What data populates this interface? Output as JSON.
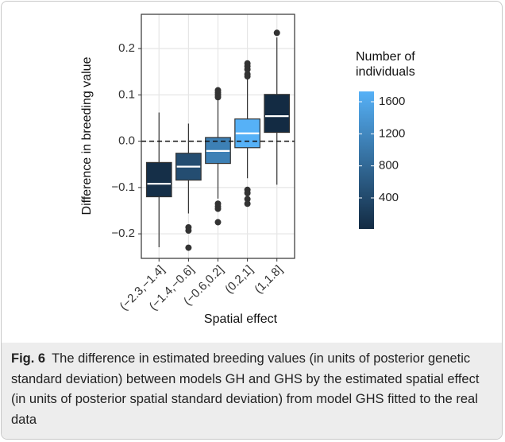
{
  "chart_data": {
    "type": "box",
    "x_label": "Spatial effect",
    "y_label": "Difference in breeding value",
    "categories": [
      "(−2.3,−1.4]",
      "(−1.4,−0.6]",
      "(−0.6,0.2]",
      "(0.2,1]",
      "(1,1.8]"
    ],
    "boxes": [
      {
        "low": -0.229,
        "q1": -0.12,
        "median": -0.092,
        "q3": -0.046,
        "high": 0.062,
        "outliers": [],
        "count": 60
      },
      {
        "low": -0.156,
        "q1": -0.084,
        "median": -0.055,
        "q3": -0.026,
        "high": 0.038,
        "outliers": [
          -0.186,
          -0.193,
          -0.23
        ],
        "count": 450
      },
      {
        "low": -0.124,
        "q1": -0.048,
        "median": -0.021,
        "q3": 0.008,
        "high": 0.09,
        "outliers": [
          -0.135,
          -0.141,
          -0.146,
          -0.175,
          0.095,
          0.1,
          0.105,
          0.11
        ],
        "count": 1100
      },
      {
        "low": -0.08,
        "q1": -0.014,
        "median": 0.017,
        "q3": 0.048,
        "high": 0.135,
        "outliers": [
          -0.105,
          -0.112,
          -0.125,
          -0.135,
          0.14,
          0.145,
          0.155,
          0.162,
          0.168
        ],
        "count": 1729
      },
      {
        "low": -0.094,
        "q1": 0.019,
        "median": 0.054,
        "q3": 0.101,
        "high": 0.224,
        "outliers": [
          0.234
        ],
        "count": 13
      }
    ],
    "ylim": [
      -0.253,
      0.274
    ],
    "yticks": [
      {
        "value": -0.2,
        "label": "−0.2"
      },
      {
        "value": -0.1,
        "label": "−0.1"
      },
      {
        "value": 0,
        "label": "0.0"
      },
      0.1,
      0.2
    ],
    "hline": 0,
    "grid": true,
    "legend": {
      "title": "Number of individuals",
      "position": "right",
      "low_color": "#132b43",
      "high_color": "#56b1f7",
      "colorlim": [
        13,
        1729
      ],
      "ticks": [
        400,
        800,
        1200,
        1600
      ]
    }
  },
  "caption": {
    "label": "Fig. 6",
    "text": "The difference in estimated breeding values (in units of posterior genetic standard deviation) between models GH and GHS by the estimated spatial effect (in units of posterior spatial standard deviation) from model GHS fitted to the real data"
  }
}
